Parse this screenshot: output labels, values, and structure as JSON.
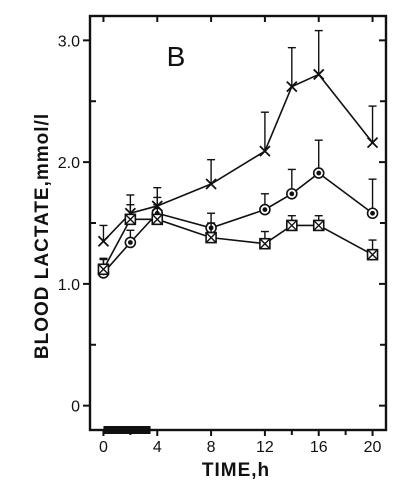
{
  "colors": {
    "ink": "#111111",
    "background": "#ffffff"
  },
  "chart_data": {
    "type": "line",
    "panel_label": "B",
    "xlabel": "TIME,h",
    "ylabel": "BLOOD LACTATE,mmol/l",
    "xlim": [
      -1,
      21
    ],
    "ylim": [
      -0.2,
      3.2
    ],
    "x_ticks": [
      0,
      4,
      8,
      12,
      16,
      20
    ],
    "x_minor_ticks": [
      2,
      14,
      18
    ],
    "y_ticks": [
      0,
      1.0,
      2.0,
      3.0
    ],
    "y_tick_labels": [
      "0",
      "1.0",
      "2.0",
      "3.0"
    ],
    "y_minor_ticks": [
      0.5,
      1.5,
      2.5
    ],
    "exercise_bar": {
      "x_start": 0,
      "x_end": 3.5,
      "y": -0.2
    },
    "series": [
      {
        "marker": "cross",
        "x": [
          0,
          2,
          4,
          8,
          12,
          14,
          16,
          20
        ],
        "y": [
          1.35,
          1.58,
          1.64,
          1.82,
          2.09,
          2.62,
          2.72,
          2.16
        ],
        "error": [
          0.13,
          0.15,
          0.15,
          0.2,
          0.32,
          0.32,
          0.36,
          0.3
        ]
      },
      {
        "marker": "filled-circle",
        "x": [
          0,
          2,
          4,
          8,
          12,
          14,
          16,
          20
        ],
        "y": [
          1.09,
          1.34,
          1.58,
          1.46,
          1.61,
          1.74,
          1.91,
          1.58
        ],
        "error": [
          0.12,
          0.1,
          0.13,
          0.12,
          0.13,
          0.2,
          0.27,
          0.28
        ]
      },
      {
        "marker": "crossed-square",
        "x": [
          0,
          2,
          4,
          8,
          12,
          14,
          16,
          20
        ],
        "y": [
          1.12,
          1.53,
          1.53,
          1.38,
          1.33,
          1.48,
          1.48,
          1.24
        ],
        "error": [
          0.08,
          0.12,
          0.12,
          0.12,
          0.1,
          0.08,
          0.08,
          0.12
        ]
      }
    ]
  }
}
